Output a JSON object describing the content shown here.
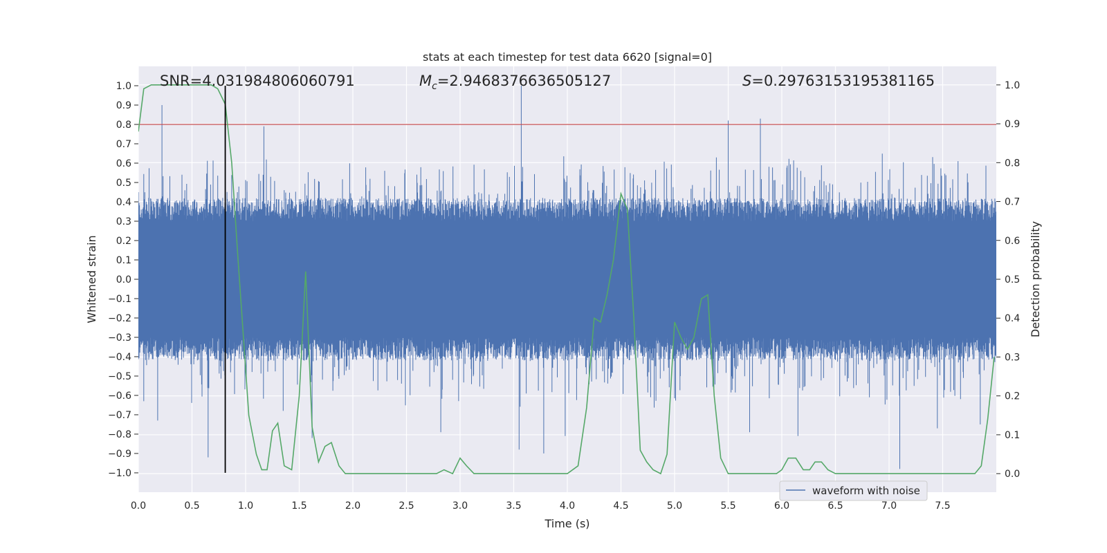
{
  "chart_data": {
    "type": "line",
    "title": "stats at each timestep for test data 6620 [signal=0]",
    "xlabel": "Time (s)",
    "ylabel": "Whitened strain",
    "y2label": "Detection probability",
    "xlim": [
      0.0,
      8.0
    ],
    "ylim": [
      -1.1,
      1.1
    ],
    "y2lim": [
      -0.0477,
      1.0477
    ],
    "xticks": [
      "0.0",
      "0.5",
      "1.0",
      "1.5",
      "2.0",
      "2.5",
      "3.0",
      "3.5",
      "4.0",
      "4.5",
      "5.0",
      "5.5",
      "6.0",
      "6.5",
      "7.0",
      "7.5"
    ],
    "yticks": [
      "1.0",
      "0.9",
      "0.8",
      "0.7",
      "0.6",
      "0.5",
      "0.4",
      "0.3",
      "0.2",
      "0.1",
      "0.0",
      "−0.1",
      "−0.2",
      "−0.3",
      "−0.4",
      "−0.5",
      "−0.6",
      "−0.7",
      "−0.8",
      "−0.9",
      "−1.0"
    ],
    "y2ticks": [
      "1.0",
      "0.9",
      "0.8",
      "0.7",
      "0.6",
      "0.5",
      "0.4",
      "0.3",
      "0.2",
      "0.1",
      "0.0"
    ],
    "annotations": {
      "snr_label": "SNR=4.031984806060791",
      "mc_symbol": "M",
      "mc_sub": "c",
      "mc_value": "=2.9468376636505127",
      "s_symbol": "S",
      "s_value": "=0.29763153195381165"
    },
    "threshold_line": {
      "y": 0.8,
      "color": "#c44e52"
    },
    "marker_line": {
      "x": 0.81,
      "ymin": -1.0,
      "ymax": 1.0,
      "color": "#000000"
    },
    "legend": {
      "entries": [
        "waveform with noise"
      ],
      "location": "lower-right"
    },
    "series": [
      {
        "name": "waveform with noise",
        "axis": "left",
        "color": "#4c72b0",
        "kind": "noise",
        "noise_floor": 0.3,
        "spikes": [
          [
            0.0,
            0.45
          ],
          [
            0.22,
            0.9
          ],
          [
            0.05,
            -0.63
          ],
          [
            0.18,
            -0.73
          ],
          [
            0.65,
            -0.92
          ],
          [
            1.17,
            0.79
          ],
          [
            1.35,
            -0.68
          ],
          [
            1.62,
            -0.82
          ],
          [
            2.82,
            -0.79
          ],
          [
            3.57,
            1.0
          ],
          [
            3.55,
            -0.88
          ],
          [
            3.78,
            -0.9
          ],
          [
            3.98,
            -0.81
          ],
          [
            5.5,
            0.82
          ],
          [
            5.8,
            0.83
          ],
          [
            5.7,
            -0.79
          ],
          [
            6.15,
            -0.81
          ],
          [
            7.1,
            -0.98
          ],
          [
            7.45,
            -0.77
          ],
          [
            7.85,
            -0.75
          ]
        ]
      },
      {
        "name": "detection probability",
        "axis": "right",
        "color": "#55a868",
        "kind": "line",
        "x": [
          0.0,
          0.05,
          0.12,
          0.2,
          0.3,
          0.4,
          0.5,
          0.6,
          0.68,
          0.74,
          0.81,
          0.87,
          0.93,
          0.98,
          1.03,
          1.1,
          1.15,
          1.2,
          1.25,
          1.3,
          1.36,
          1.43,
          1.5,
          1.56,
          1.62,
          1.68,
          1.74,
          1.8,
          1.87,
          1.93,
          2.0,
          2.07,
          2.13,
          2.2,
          2.3,
          2.4,
          2.5,
          2.6,
          2.7,
          2.78,
          2.85,
          2.93,
          3.0,
          3.06,
          3.13,
          3.2,
          3.3,
          3.4,
          3.5,
          3.6,
          3.7,
          3.8,
          3.9,
          4.0,
          4.1,
          4.18,
          4.25,
          4.31,
          4.37,
          4.43,
          4.5,
          4.56,
          4.62,
          4.68,
          4.74,
          4.8,
          4.87,
          4.93,
          5.0,
          5.06,
          5.12,
          5.18,
          5.25,
          5.31,
          5.37,
          5.43,
          5.5,
          5.56,
          5.62,
          5.7,
          5.8,
          5.9,
          5.95,
          6.0,
          6.06,
          6.13,
          6.2,
          6.26,
          6.31,
          6.37,
          6.43,
          6.5,
          6.6,
          6.7,
          6.8,
          6.9,
          7.0,
          7.1,
          7.2,
          7.3,
          7.4,
          7.5,
          7.6,
          7.7,
          7.8,
          7.86,
          7.92,
          7.98
        ],
        "y": [
          0.88,
          0.99,
          1.0,
          1.0,
          1.0,
          1.0,
          1.0,
          1.0,
          1.0,
          0.99,
          0.95,
          0.8,
          0.55,
          0.35,
          0.15,
          0.05,
          0.01,
          0.01,
          0.11,
          0.13,
          0.02,
          0.01,
          0.2,
          0.52,
          0.12,
          0.03,
          0.07,
          0.08,
          0.02,
          0.0,
          0.0,
          0.0,
          0.0,
          0.0,
          0.0,
          0.0,
          0.0,
          0.0,
          0.0,
          0.0,
          0.01,
          0.0,
          0.04,
          0.02,
          0.0,
          0.0,
          0.0,
          0.0,
          0.0,
          0.0,
          0.0,
          0.0,
          0.0,
          0.0,
          0.02,
          0.17,
          0.4,
          0.39,
          0.46,
          0.55,
          0.72,
          0.68,
          0.4,
          0.06,
          0.03,
          0.01,
          0.0,
          0.05,
          0.39,
          0.35,
          0.32,
          0.35,
          0.45,
          0.46,
          0.2,
          0.04,
          0.0,
          0.0,
          0.0,
          0.0,
          0.0,
          0.0,
          0.0,
          0.01,
          0.04,
          0.04,
          0.01,
          0.01,
          0.03,
          0.03,
          0.01,
          0.0,
          0.0,
          0.0,
          0.0,
          0.0,
          0.0,
          0.0,
          0.0,
          0.0,
          0.0,
          0.0,
          0.0,
          0.0,
          0.0,
          0.02,
          0.14,
          0.3
        ]
      }
    ]
  }
}
